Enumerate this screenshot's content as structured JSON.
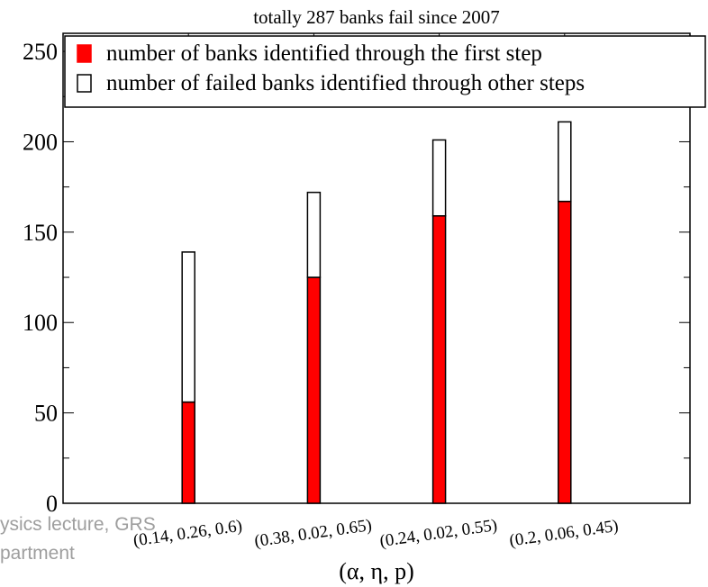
{
  "footer": {
    "watermark_line1": "ysics lecture, GRS",
    "watermark_line2": "partment"
  },
  "chart_data": {
    "type": "bar",
    "title": "totally 287 banks fail since 2007",
    "xlabel": "(α, η, p)",
    "ylabel": "",
    "ylim": [
      0,
      260
    ],
    "y_ticks": [
      0,
      50,
      100,
      150,
      200,
      250
    ],
    "stacked": true,
    "categories": [
      "(0.14, 0.26, 0.6)",
      "(0.38, 0.02, 0.65)",
      "(0.24, 0.02, 0.55)",
      "(0.2, 0.06, 0.45)"
    ],
    "series": [
      {
        "name": "number of banks identified through the first step",
        "color": "#ff0000",
        "values": [
          56,
          125,
          159,
          167
        ]
      },
      {
        "name": "number of failed banks identified through other steps",
        "color": "#ffffff",
        "values": [
          83,
          47,
          42,
          44
        ]
      }
    ],
    "totals": [
      139,
      172,
      201,
      211
    ],
    "grid": false,
    "legend_position": "top"
  }
}
